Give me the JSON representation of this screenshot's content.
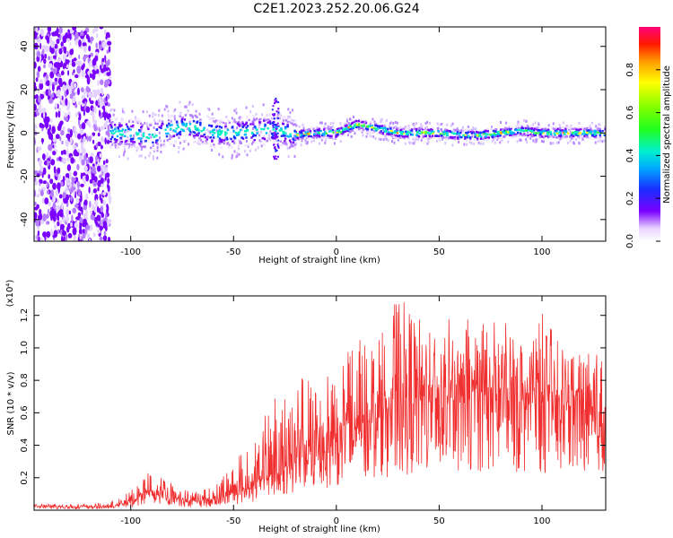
{
  "title": "C2E1.2023.252.20.06.G24",
  "chart_data": [
    {
      "type": "heatmap",
      "xlabel": "Height of straight line (km)",
      "ylabel": "Frequency (Hz)",
      "xlim": [
        -147,
        131
      ],
      "ylim": [
        -50,
        49
      ],
      "x_ticks": [
        -100,
        -50,
        0,
        50,
        100
      ],
      "y_ticks": [
        -40,
        -20,
        0,
        20,
        40
      ],
      "colorbar": {
        "label": "Normalized spectral amplitude",
        "range": [
          0,
          1
        ],
        "ticks": [
          "0.0",
          "0.2",
          "0.4",
          "0.6",
          "0.8"
        ]
      },
      "ridge": {
        "x": [
          -110,
          -100,
          -90,
          -80,
          -70,
          -60,
          -50,
          -40,
          -30,
          -20,
          -10,
          0,
          10,
          20,
          30,
          40,
          50,
          60,
          70,
          80,
          90,
          100,
          110,
          120,
          131
        ],
        "y": [
          0,
          0,
          -2,
          2,
          3,
          0,
          0,
          1,
          2,
          -1,
          0,
          0,
          4,
          2,
          0,
          0,
          0,
          -1,
          -1,
          0,
          1,
          0,
          0,
          0,
          0
        ]
      }
    },
    {
      "type": "line",
      "xlabel": "Height of straight line (km)",
      "ylabel": "SNR (10 * v/v)",
      "multiplier": "(x10⁴)",
      "xlim": [
        -147,
        131
      ],
      "ylim": [
        0,
        1.32
      ],
      "x_ticks": [
        -100,
        -50,
        0,
        50,
        100
      ],
      "y_ticks": [
        "0.2",
        "0.4",
        "0.6",
        "0.8",
        "1.0",
        "1.2"
      ],
      "series": [
        {
          "color": "#f03030",
          "envelope": {
            "x": [
              -147,
              -120,
              -110,
              -100,
              -95,
              -90,
              -85,
              -80,
              -75,
              -70,
              -60,
              -50,
              -40,
              -30,
              -20,
              -10,
              0,
              10,
              20,
              30,
              40,
              50,
              60,
              70,
              80,
              90,
              100,
              110,
              120,
              131
            ],
            "base": [
              0.02,
              0.02,
              0.02,
              0.05,
              0.08,
              0.1,
              0.1,
              0.08,
              0.06,
              0.05,
              0.06,
              0.1,
              0.15,
              0.22,
              0.3,
              0.36,
              0.42,
              0.5,
              0.55,
              0.6,
              0.65,
              0.66,
              0.68,
              0.68,
              0.68,
              0.66,
              0.66,
              0.64,
              0.62,
              0.6
            ],
            "peak": [
              0.04,
              0.04,
              0.05,
              0.12,
              0.2,
              0.26,
              0.22,
              0.17,
              0.14,
              0.12,
              0.16,
              0.3,
              0.45,
              0.7,
              0.8,
              0.9,
              0.95,
              1.05,
              1.1,
              1.32,
              1.2,
              1.22,
              1.15,
              1.22,
              1.18,
              1.1,
              1.22,
              1.05,
              1.0,
              0.95
            ]
          }
        }
      ]
    }
  ]
}
